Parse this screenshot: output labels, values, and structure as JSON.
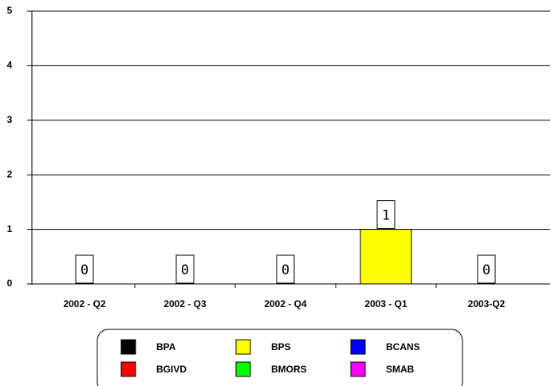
{
  "chart_data": {
    "type": "bar",
    "stacked": true,
    "categories": [
      "2002 - Q2",
      "2002 - Q3",
      "2002 - Q4",
      "2003 - Q1",
      "2003-Q2"
    ],
    "series": [
      {
        "name": "BPA",
        "color": "#000000",
        "values": [
          0,
          0,
          0,
          0,
          0
        ]
      },
      {
        "name": "BPS",
        "color": "#ffff00",
        "values": [
          0,
          0,
          0,
          1,
          0
        ]
      },
      {
        "name": "BCANS",
        "color": "#0000ff",
        "values": [
          0,
          0,
          0,
          0,
          0
        ]
      },
      {
        "name": "BGIVD",
        "color": "#ff0000",
        "values": [
          0,
          0,
          0,
          0,
          0
        ]
      },
      {
        "name": "BMORS",
        "color": "#00ff00",
        "values": [
          0,
          0,
          0,
          0,
          0
        ]
      },
      {
        "name": "SMAB",
        "color": "#ff00ff",
        "values": [
          0,
          0,
          0,
          0,
          0
        ]
      }
    ],
    "totals": [
      0,
      0,
      0,
      1,
      0
    ],
    "ylim": [
      0,
      5
    ],
    "yticks": [
      0,
      1,
      2,
      3,
      4,
      5
    ],
    "grid": true,
    "legend": "bottom"
  }
}
